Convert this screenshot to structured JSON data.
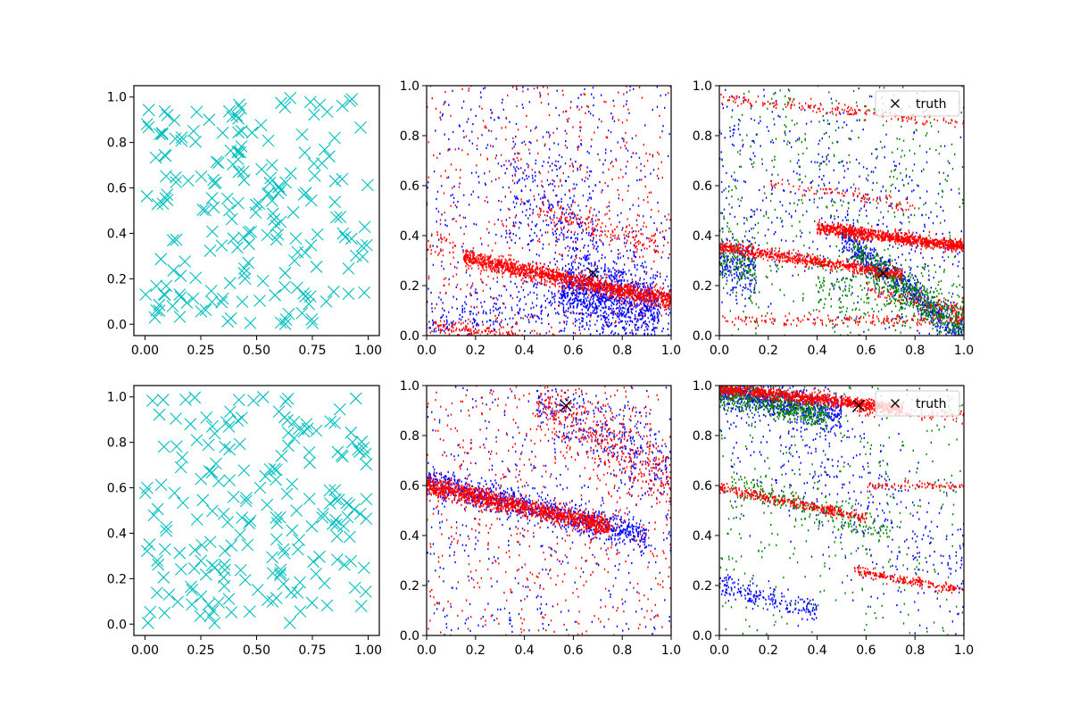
{
  "figure": {
    "background": "#ffffff"
  },
  "colors": {
    "cyan": "#00bfbf",
    "blue": "#0000ff",
    "red": "#ff0000",
    "green": "#008000",
    "black": "#000000"
  },
  "chart_data": [
    {
      "type": "scatter",
      "grid": false,
      "xlim": [
        -0.05,
        1.05
      ],
      "ylim": [
        -0.05,
        1.05
      ],
      "xticks": [
        0.0,
        0.25,
        0.5,
        0.75,
        1.0
      ],
      "xtick_labels": [
        "0.00",
        "0.25",
        "0.50",
        "0.75",
        "1.00"
      ],
      "yticks": [
        0.0,
        0.2,
        0.4,
        0.6,
        0.8,
        1.0
      ],
      "ytick_labels": [
        "0.0",
        "0.2",
        "0.4",
        "0.6",
        "0.8",
        "1.0"
      ],
      "series": [
        {
          "marker": "x",
          "color": "#00bfbf",
          "random_seed": 11,
          "count": 200
        }
      ]
    },
    {
      "type": "scatter",
      "grid": false,
      "xlim": [
        0,
        1
      ],
      "ylim": [
        0,
        1
      ],
      "xticks": [
        0.0,
        0.2,
        0.4,
        0.6,
        0.8,
        1.0
      ],
      "xtick_labels": [
        "0.0",
        "0.2",
        "0.4",
        "0.6",
        "0.8",
        "1.0"
      ],
      "yticks": [
        0.0,
        0.2,
        0.4,
        0.6,
        0.8,
        1.0
      ],
      "ytick_labels": [
        "0.0",
        "0.2",
        "0.4",
        "0.6",
        "0.8",
        "1.0"
      ],
      "truth": {
        "x": 0.68,
        "y": 0.25
      },
      "series": [
        {
          "color": "#0000ff",
          "marker": "point",
          "bands": [
            {
              "x": [
                0.55,
                0.95
              ],
              "y0": 0.28,
              "slope": -0.2,
              "spread": 0.07,
              "count": 850
            },
            {
              "x": [
                0.0,
                0.9
              ],
              "y0": 0.04,
              "slope": 0.2,
              "spread": 0.05,
              "count": 300
            },
            {
              "x": [
                0.55,
                1.0
              ],
              "y0": 0.48,
              "slope": -0.35,
              "spread": 0.08,
              "count": 160
            },
            {
              "x": [
                0.35,
                0.7
              ],
              "y0": 0.8,
              "slope": -0.6,
              "spread": 0.12,
              "count": 250
            },
            {
              "x": [
                0.0,
                1.0
              ],
              "y0": 0.5,
              "slope": 0.0,
              "spread": 0.5,
              "count": 550
            }
          ]
        },
        {
          "color": "#ff0000",
          "marker": "point",
          "bands": [
            {
              "x": [
                0.15,
                1.0
              ],
              "y0": 0.34,
              "slope": -0.2,
              "spread": 0.018,
              "count": 1400
            },
            {
              "x": [
                0.0,
                0.6
              ],
              "y0": 0.05,
              "slope": -0.15,
              "spread": 0.015,
              "count": 220
            },
            {
              "x": [
                0.45,
                0.95
              ],
              "y0": 0.64,
              "slope": -0.3,
              "spread": 0.025,
              "count": 170
            },
            {
              "x": [
                0.0,
                0.12
              ],
              "y0": 0.36,
              "slope": 0.0,
              "spread": 0.03,
              "count": 30
            },
            {
              "x": [
                0.0,
                1.0
              ],
              "y0": 0.5,
              "slope": 0.0,
              "spread": 0.5,
              "count": 450
            }
          ]
        }
      ]
    },
    {
      "type": "scatter",
      "grid": false,
      "xlim": [
        0,
        1
      ],
      "ylim": [
        0,
        1
      ],
      "xticks": [
        0.0,
        0.2,
        0.4,
        0.6,
        0.8,
        1.0
      ],
      "xtick_labels": [
        "0.0",
        "0.2",
        "0.4",
        "0.6",
        "0.8",
        "1.0"
      ],
      "yticks": [
        0.0,
        0.2,
        0.4,
        0.6,
        0.8,
        1.0
      ],
      "ytick_labels": [
        "0.0",
        "0.2",
        "0.4",
        "0.6",
        "0.8",
        "1.0"
      ],
      "truth": {
        "x": 0.67,
        "y": 0.25
      },
      "legend": {
        "label": "truth",
        "position": "top-right"
      },
      "series": [
        {
          "color": "#0000ff",
          "marker": "point",
          "bands": [
            {
              "x": [
                0.5,
                1.0
              ],
              "y0": 0.8,
              "slope": -0.8,
              "spread": 0.035,
              "count": 600
            },
            {
              "x": [
                0.0,
                0.15
              ],
              "y0": 0.3,
              "slope": -0.3,
              "spread": 0.06,
              "count": 200
            },
            {
              "x": [
                0.0,
                1.0
              ],
              "y0": 0.75,
              "slope": -0.5,
              "spread": 0.25,
              "count": 550
            }
          ]
        },
        {
          "color": "#008000",
          "marker": "point",
          "bands": [
            {
              "x": [
                0.55,
                1.0
              ],
              "y0": 0.72,
              "slope": -0.7,
              "spread": 0.035,
              "count": 500
            },
            {
              "x": [
                0.0,
                0.15
              ],
              "y0": 0.32,
              "slope": -0.3,
              "spread": 0.06,
              "count": 150
            },
            {
              "x": [
                0.4,
                1.0
              ],
              "y0": 0.3,
              "slope": -0.2,
              "spread": 0.08,
              "count": 300
            },
            {
              "x": [
                0.0,
                1.0
              ],
              "y0": 0.55,
              "slope": 0.0,
              "spread": 0.45,
              "count": 450
            }
          ]
        },
        {
          "color": "#ff0000",
          "marker": "point",
          "bands": [
            {
              "x": [
                0.4,
                1.0
              ],
              "y0": 0.485,
              "slope": -0.13,
              "spread": 0.012,
              "count": 950
            },
            {
              "x": [
                0.0,
                0.75
              ],
              "y0": 0.355,
              "slope": -0.15,
              "spread": 0.012,
              "count": 700
            },
            {
              "x": [
                0.0,
                1.0
              ],
              "y0": 0.95,
              "slope": -0.1,
              "spread": 0.012,
              "count": 180
            },
            {
              "x": [
                0.2,
                0.8
              ],
              "y0": 0.64,
              "slope": -0.15,
              "spread": 0.012,
              "count": 90
            },
            {
              "x": [
                0.0,
                1.0
              ],
              "y0": 0.06,
              "slope": 0.0,
              "spread": 0.012,
              "count": 180
            },
            {
              "x": [
                0.6,
                1.0
              ],
              "y0": 0.3,
              "slope": -0.2,
              "spread": 0.015,
              "count": 90
            }
          ]
        }
      ]
    },
    {
      "type": "scatter",
      "grid": false,
      "xlim": [
        -0.05,
        1.05
      ],
      "ylim": [
        -0.05,
        1.05
      ],
      "xticks": [
        0.0,
        0.25,
        0.5,
        0.75,
        1.0
      ],
      "xtick_labels": [
        "0.00",
        "0.25",
        "0.50",
        "0.75",
        "1.00"
      ],
      "yticks": [
        0.0,
        0.2,
        0.4,
        0.6,
        0.8,
        1.0
      ],
      "ytick_labels": [
        "0.0",
        "0.2",
        "0.4",
        "0.6",
        "0.8",
        "1.0"
      ],
      "series": [
        {
          "marker": "x",
          "color": "#00bfbf",
          "random_seed": 29,
          "count": 200
        }
      ]
    },
    {
      "type": "scatter",
      "grid": false,
      "xlim": [
        0,
        1
      ],
      "ylim": [
        0,
        1
      ],
      "xticks": [
        0.0,
        0.2,
        0.4,
        0.6,
        0.8,
        1.0
      ],
      "xtick_labels": [
        "0.0",
        "0.2",
        "0.4",
        "0.6",
        "0.8",
        "1.0"
      ],
      "yticks": [
        0.0,
        0.2,
        0.4,
        0.6,
        0.8,
        1.0
      ],
      "ytick_labels": [
        "0.0",
        "0.2",
        "0.4",
        "0.6",
        "0.8",
        "1.0"
      ],
      "truth": {
        "x": 0.57,
        "y": 0.92
      },
      "series": [
        {
          "color": "#0000ff",
          "marker": "point",
          "bands": [
            {
              "x": [
                0.0,
                0.9
              ],
              "y0": 0.62,
              "slope": -0.25,
              "spread": 0.03,
              "count": 900
            },
            {
              "x": [
                0.45,
                1.0
              ],
              "y0": 1.25,
              "slope": -0.6,
              "spread": 0.08,
              "count": 300
            },
            {
              "x": [
                0.0,
                1.0
              ],
              "y0": 0.5,
              "slope": 0.0,
              "spread": 0.5,
              "count": 450
            }
          ]
        },
        {
          "color": "#ff0000",
          "marker": "point",
          "bands": [
            {
              "x": [
                0.0,
                0.75
              ],
              "y0": 0.6,
              "slope": -0.22,
              "spread": 0.018,
              "count": 1200
            },
            {
              "x": [
                0.45,
                1.0
              ],
              "y0": 1.22,
              "slope": -0.6,
              "spread": 0.07,
              "count": 400
            },
            {
              "x": [
                0.0,
                1.0
              ],
              "y0": 0.5,
              "slope": 0.0,
              "spread": 0.5,
              "count": 600
            }
          ]
        }
      ]
    },
    {
      "type": "scatter",
      "grid": false,
      "xlim": [
        0,
        1
      ],
      "ylim": [
        0,
        1
      ],
      "xticks": [
        0.0,
        0.2,
        0.4,
        0.6,
        0.8,
        1.0
      ],
      "xtick_labels": [
        "0.0",
        "0.2",
        "0.4",
        "0.6",
        "0.8",
        "1.0"
      ],
      "yticks": [
        0.0,
        0.2,
        0.4,
        0.6,
        0.8,
        1.0
      ],
      "ytick_labels": [
        "0.0",
        "0.2",
        "0.4",
        "0.6",
        "0.8",
        "1.0"
      ],
      "truth": {
        "x": 0.57,
        "y": 0.92
      },
      "legend": {
        "label": "truth",
        "position": "top-right"
      },
      "series": [
        {
          "color": "#0000ff",
          "marker": "point",
          "bands": [
            {
              "x": [
                0.0,
                0.5
              ],
              "y0": 0.98,
              "slope": -0.2,
              "spread": 0.035,
              "count": 650
            },
            {
              "x": [
                0.0,
                0.4
              ],
              "y0": 0.2,
              "slope": -0.25,
              "spread": 0.025,
              "count": 200
            },
            {
              "x": [
                0.0,
                1.0
              ],
              "y0": 0.95,
              "slope": -0.7,
              "spread": 0.18,
              "count": 500
            }
          ]
        },
        {
          "color": "#008000",
          "marker": "point",
          "bands": [
            {
              "x": [
                0.0,
                0.45
              ],
              "y0": 0.97,
              "slope": -0.2,
              "spread": 0.03,
              "count": 550
            },
            {
              "x": [
                0.05,
                0.7
              ],
              "y0": 0.62,
              "slope": -0.3,
              "spread": 0.03,
              "count": 250
            },
            {
              "x": [
                0.0,
                1.0
              ],
              "y0": 0.5,
              "slope": 0.0,
              "spread": 0.45,
              "count": 350
            }
          ]
        },
        {
          "color": "#ff0000",
          "marker": "point",
          "bands": [
            {
              "x": [
                0.0,
                0.75
              ],
              "y0": 0.99,
              "slope": -0.11,
              "spread": 0.012,
              "count": 1000
            },
            {
              "x": [
                0.0,
                0.6
              ],
              "y0": 0.59,
              "slope": -0.2,
              "spread": 0.01,
              "count": 320
            },
            {
              "x": [
                0.55,
                1.0
              ],
              "y0": 0.35,
              "slope": -0.17,
              "spread": 0.01,
              "count": 200
            },
            {
              "x": [
                0.6,
                1.0
              ],
              "y0": 0.6,
              "slope": 0.0,
              "spread": 0.008,
              "count": 80
            },
            {
              "x": [
                0.55,
                1.0
              ],
              "y0": 0.93,
              "slope": -0.05,
              "spread": 0.012,
              "count": 80
            }
          ]
        }
      ]
    }
  ]
}
